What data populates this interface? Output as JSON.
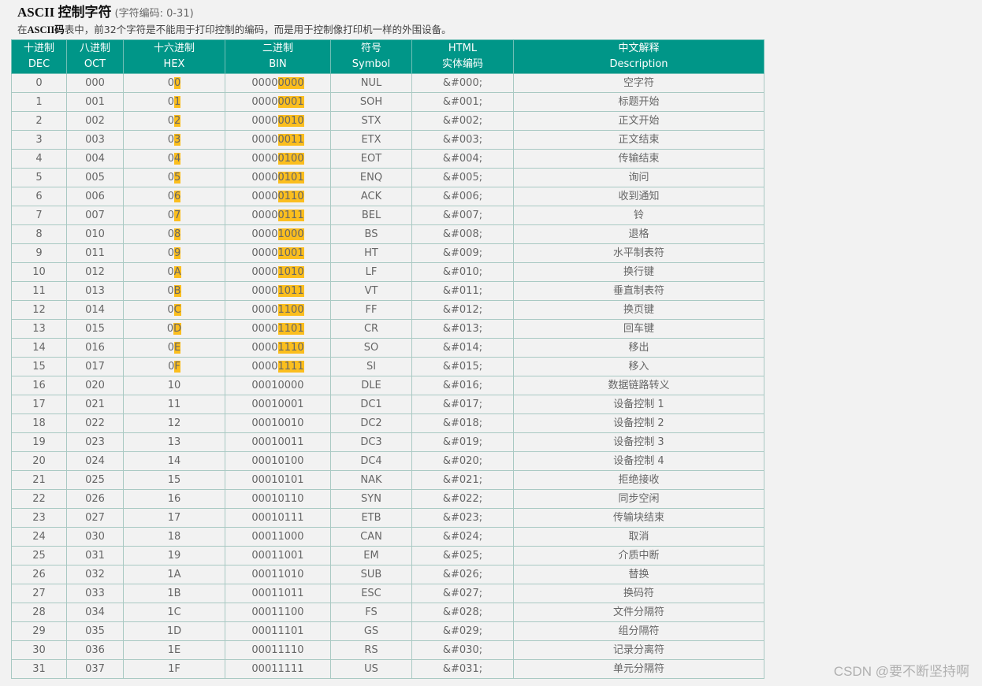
{
  "heading": {
    "title": "ASCII 控制字符",
    "subtitle": "(字符编码: 0-31)",
    "desc_pre": "在",
    "desc_bold": "ASCII码",
    "desc_post": "表中，前32个字符是不能用于打印控制的编码，而是用于控制像打印机一样的外围设备。"
  },
  "columns": [
    {
      "top": "十进制",
      "bottom": "DEC"
    },
    {
      "top": "八进制",
      "bottom": "OCT"
    },
    {
      "top": "十六进制",
      "bottom": "HEX"
    },
    {
      "top": "二进制",
      "bottom": "BIN"
    },
    {
      "top": "符号",
      "bottom": "Symbol"
    },
    {
      "top": "HTML",
      "bottom": "实体编码"
    },
    {
      "top": "中文解释",
      "bottom": "Description"
    }
  ],
  "rows": [
    {
      "dec": "0",
      "oct": "000",
      "hex": "00",
      "bin": "00000000",
      "sym": "NUL",
      "html": "&#000;",
      "desc": "空字符"
    },
    {
      "dec": "1",
      "oct": "001",
      "hex": "01",
      "bin": "00000001",
      "sym": "SOH",
      "html": "&#001;",
      "desc": "标题开始"
    },
    {
      "dec": "2",
      "oct": "002",
      "hex": "02",
      "bin": "00000010",
      "sym": "STX",
      "html": "&#002;",
      "desc": "正文开始"
    },
    {
      "dec": "3",
      "oct": "003",
      "hex": "03",
      "bin": "00000011",
      "sym": "ETX",
      "html": "&#003;",
      "desc": "正文结束"
    },
    {
      "dec": "4",
      "oct": "004",
      "hex": "04",
      "bin": "00000100",
      "sym": "EOT",
      "html": "&#004;",
      "desc": "传输结束"
    },
    {
      "dec": "5",
      "oct": "005",
      "hex": "05",
      "bin": "00000101",
      "sym": "ENQ",
      "html": "&#005;",
      "desc": "询问"
    },
    {
      "dec": "6",
      "oct": "006",
      "hex": "06",
      "bin": "00000110",
      "sym": "ACK",
      "html": "&#006;",
      "desc": "收到通知"
    },
    {
      "dec": "7",
      "oct": "007",
      "hex": "07",
      "bin": "00000111",
      "sym": "BEL",
      "html": "&#007;",
      "desc": "铃"
    },
    {
      "dec": "8",
      "oct": "010",
      "hex": "08",
      "bin": "00001000",
      "sym": "BS",
      "html": "&#008;",
      "desc": "退格"
    },
    {
      "dec": "9",
      "oct": "011",
      "hex": "09",
      "bin": "00001001",
      "sym": "HT",
      "html": "&#009;",
      "desc": "水平制表符"
    },
    {
      "dec": "10",
      "oct": "012",
      "hex": "0A",
      "bin": "00001010",
      "sym": "LF",
      "html": "&#010;",
      "desc": "换行键"
    },
    {
      "dec": "11",
      "oct": "013",
      "hex": "0B",
      "bin": "00001011",
      "sym": "VT",
      "html": "&#011;",
      "desc": "垂直制表符"
    },
    {
      "dec": "12",
      "oct": "014",
      "hex": "0C",
      "bin": "00001100",
      "sym": "FF",
      "html": "&#012;",
      "desc": "换页键"
    },
    {
      "dec": "13",
      "oct": "015",
      "hex": "0D",
      "bin": "00001101",
      "sym": "CR",
      "html": "&#013;",
      "desc": "回车键"
    },
    {
      "dec": "14",
      "oct": "016",
      "hex": "0E",
      "bin": "00001110",
      "sym": "SO",
      "html": "&#014;",
      "desc": "移出"
    },
    {
      "dec": "15",
      "oct": "017",
      "hex": "0F",
      "bin": "00001111",
      "sym": "SI",
      "html": "&#015;",
      "desc": "移入"
    },
    {
      "dec": "16",
      "oct": "020",
      "hex": "10",
      "bin": "00010000",
      "sym": "DLE",
      "html": "&#016;",
      "desc": "数据链路转义"
    },
    {
      "dec": "17",
      "oct": "021",
      "hex": "11",
      "bin": "00010001",
      "sym": "DC1",
      "html": "&#017;",
      "desc": "设备控制 1"
    },
    {
      "dec": "18",
      "oct": "022",
      "hex": "12",
      "bin": "00010010",
      "sym": "DC2",
      "html": "&#018;",
      "desc": "设备控制 2"
    },
    {
      "dec": "19",
      "oct": "023",
      "hex": "13",
      "bin": "00010011",
      "sym": "DC3",
      "html": "&#019;",
      "desc": "设备控制 3"
    },
    {
      "dec": "20",
      "oct": "024",
      "hex": "14",
      "bin": "00010100",
      "sym": "DC4",
      "html": "&#020;",
      "desc": "设备控制 4"
    },
    {
      "dec": "21",
      "oct": "025",
      "hex": "15",
      "bin": "00010101",
      "sym": "NAK",
      "html": "&#021;",
      "desc": "拒绝接收"
    },
    {
      "dec": "22",
      "oct": "026",
      "hex": "16",
      "bin": "00010110",
      "sym": "SYN",
      "html": "&#022;",
      "desc": "同步空闲"
    },
    {
      "dec": "23",
      "oct": "027",
      "hex": "17",
      "bin": "00010111",
      "sym": "ETB",
      "html": "&#023;",
      "desc": "传输块结束"
    },
    {
      "dec": "24",
      "oct": "030",
      "hex": "18",
      "bin": "00011000",
      "sym": "CAN",
      "html": "&#024;",
      "desc": "取消"
    },
    {
      "dec": "25",
      "oct": "031",
      "hex": "19",
      "bin": "00011001",
      "sym": "EM",
      "html": "&#025;",
      "desc": "介质中断"
    },
    {
      "dec": "26",
      "oct": "032",
      "hex": "1A",
      "bin": "00011010",
      "sym": "SUB",
      "html": "&#026;",
      "desc": "替换"
    },
    {
      "dec": "27",
      "oct": "033",
      "hex": "1B",
      "bin": "00011011",
      "sym": "ESC",
      "html": "&#027;",
      "desc": "换码符"
    },
    {
      "dec": "28",
      "oct": "034",
      "hex": "1C",
      "bin": "00011100",
      "sym": "FS",
      "html": "&#028;",
      "desc": "文件分隔符"
    },
    {
      "dec": "29",
      "oct": "035",
      "hex": "1D",
      "bin": "00011101",
      "sym": "GS",
      "html": "&#029;",
      "desc": "组分隔符"
    },
    {
      "dec": "30",
      "oct": "036",
      "hex": "1E",
      "bin": "00011110",
      "sym": "RS",
      "html": "&#030;",
      "desc": "记录分离符"
    },
    {
      "dec": "31",
      "oct": "037",
      "hex": "1F",
      "bin": "00011111",
      "sym": "US",
      "html": "&#031;",
      "desc": "单元分隔符"
    }
  ],
  "highlight_color": "#fbbe1e",
  "header_color": "#009688",
  "watermark": "CSDN @要不断坚持啊"
}
